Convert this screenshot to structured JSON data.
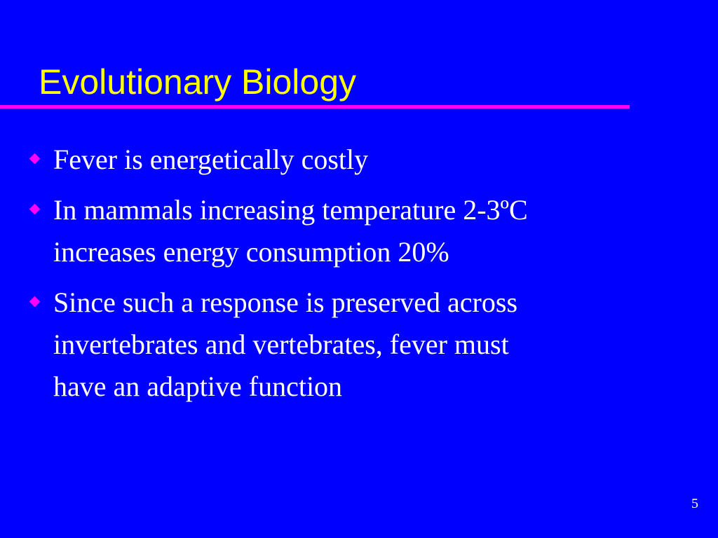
{
  "slide": {
    "title": "Evolutionary Biology",
    "bullets": [
      {
        "lines": [
          "Fever is energetically costly"
        ]
      },
      {
        "lines": [
          "In mammals increasing temperature 2-3ºC",
          "increases energy consumption 20%"
        ]
      },
      {
        "lines": [
          "Since such a response is preserved across",
          "invertebrates and vertebrates, fever must",
          "have an adaptive function"
        ]
      }
    ],
    "page_number": "5"
  }
}
